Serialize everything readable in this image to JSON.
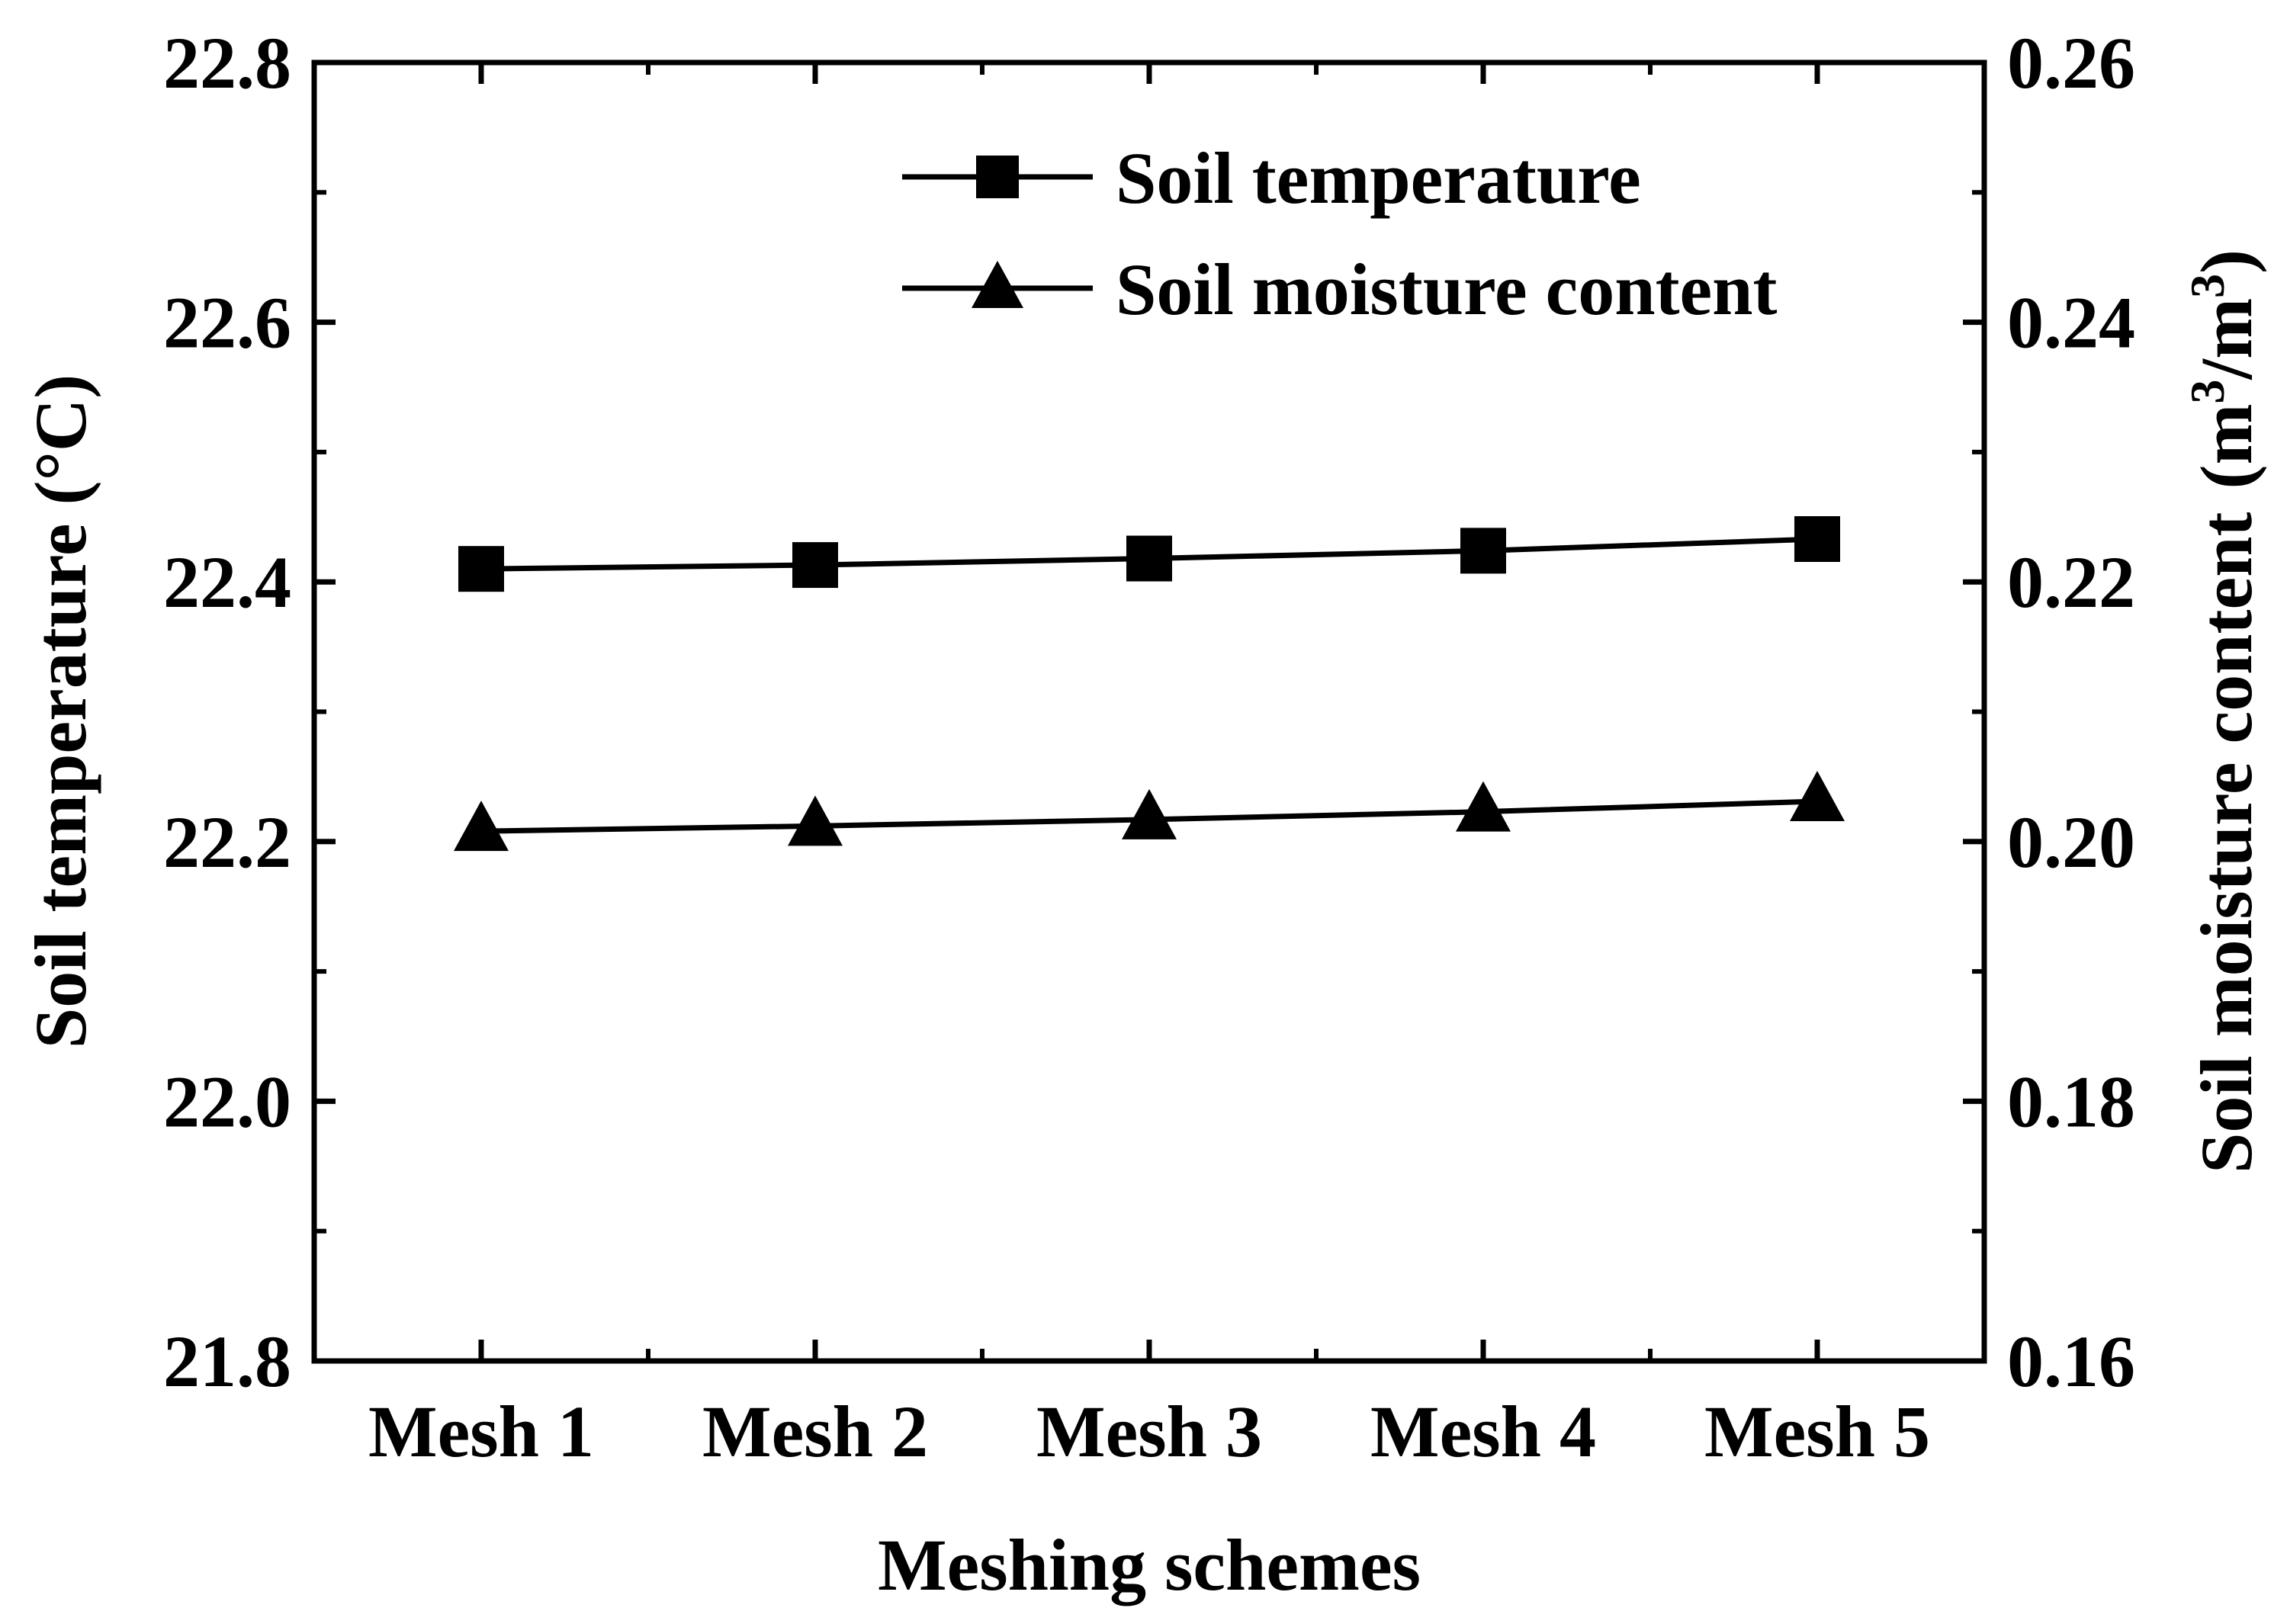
{
  "chart_data": {
    "type": "line",
    "categories": [
      "Mesh 1",
      "Mesh 2",
      "Mesh 3",
      "Mesh 4",
      "Mesh 5"
    ],
    "xlabel": "Meshing schemes",
    "y_left": {
      "label": "Soil temperature (°C)",
      "range": [
        21.8,
        22.8
      ],
      "ticks": [
        "21.8",
        "22.0",
        "22.2",
        "22.4",
        "22.6",
        "22.8"
      ]
    },
    "y_right": {
      "label_main": "Soil moisture content",
      "label_unit_open": "(m",
      "label_unit_sup1": "3",
      "label_unit_mid": "/m",
      "label_unit_sup2": "3",
      "label_unit_close": ")",
      "range": [
        0.16,
        0.26
      ],
      "ticks": [
        "0.16",
        "0.18",
        "0.20",
        "0.22",
        "0.24",
        "0.26"
      ]
    },
    "series": [
      {
        "name": "Soil temperature",
        "axis": "left",
        "marker": "square",
        "values": [
          22.41,
          22.413,
          22.418,
          22.424,
          22.433
        ]
      },
      {
        "name": "Soil moisture content",
        "axis": "right",
        "marker": "triangle",
        "values": [
          0.2008,
          0.2012,
          0.2017,
          0.2023,
          0.2031
        ]
      }
    ],
    "legend_position": "top-right",
    "grid": false,
    "colors": {
      "line": "#000000",
      "marker": "#000000",
      "background": "#ffffff"
    }
  }
}
